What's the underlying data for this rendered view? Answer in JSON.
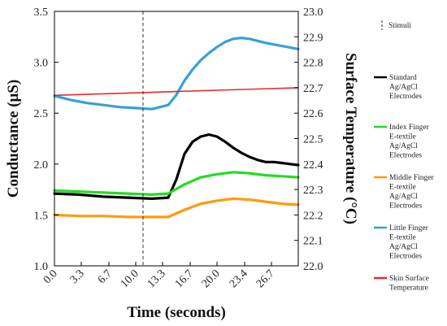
{
  "chart_data": {
    "type": "line",
    "xlabel": "Time (seconds)",
    "ylabel_left": "Conductance (μS)",
    "ylabel_right": "Surface Temperature (°C)",
    "xlim": [
      0,
      30
    ],
    "ylim_left": [
      1.0,
      3.5
    ],
    "ylim_right": [
      22.0,
      23.0
    ],
    "x_ticks": [
      "0.0",
      "3.3",
      "6.7",
      "10.0",
      "13.3",
      "16.7",
      "20.0",
      "23.4",
      "26.7"
    ],
    "x_tick_values": [
      0,
      3.3,
      6.7,
      10.0,
      13.3,
      16.7,
      20.0,
      23.4,
      26.7
    ],
    "y_ticks_left": [
      "1.0",
      "1.5",
      "2.0",
      "2.5",
      "3.0",
      "3.5"
    ],
    "y_ticks_right": [
      "22.0",
      "22.1",
      "22.2",
      "22.3",
      "22.4",
      "22.5",
      "22.6",
      "22.7",
      "22.8",
      "22.9",
      "23.0"
    ],
    "stimulus_time": 10.9,
    "grid": false,
    "legend_position": "right",
    "legend": {
      "stimuli": "Stimuli",
      "entries": [
        {
          "lines": [
            "Standard",
            "Ag/AgCl",
            "Electrodes"
          ],
          "color": "#000000"
        },
        {
          "lines": [
            "Index Finger",
            "E-textile",
            "Ag/AgCl",
            "Electrodes"
          ],
          "color": "#22dd22"
        },
        {
          "lines": [
            "Middle Finger",
            "E-textile",
            "Ag/AgCl",
            "Electrodes"
          ],
          "color": "#ff9b0d"
        },
        {
          "lines": [
            "Little Finger",
            "E-textile",
            "Ag/AgCl",
            "Electrodes"
          ],
          "color": "#3a9fd8"
        },
        {
          "lines": [
            "Skin Surface",
            "Temperature"
          ],
          "color": "#e8282a"
        }
      ]
    },
    "series": [
      {
        "axis": "left",
        "color": "#000000",
        "x": [
          0,
          3,
          6,
          9,
          12,
          14,
          15,
          16,
          17,
          18,
          19,
          20,
          21,
          22,
          23,
          24,
          25,
          26,
          27,
          28,
          29,
          30
        ],
        "y": [
          1.71,
          1.7,
          1.68,
          1.67,
          1.66,
          1.67,
          1.85,
          2.1,
          2.22,
          2.27,
          2.29,
          2.27,
          2.22,
          2.16,
          2.11,
          2.07,
          2.04,
          2.02,
          2.02,
          2.01,
          2.0,
          1.99
        ]
      },
      {
        "axis": "left",
        "color": "#22dd22",
        "x": [
          0,
          3,
          6,
          9,
          12,
          14,
          16,
          18,
          20,
          22,
          24,
          26,
          28,
          30
        ],
        "y": [
          1.74,
          1.73,
          1.72,
          1.71,
          1.7,
          1.71,
          1.8,
          1.87,
          1.9,
          1.92,
          1.91,
          1.89,
          1.88,
          1.87
        ]
      },
      {
        "axis": "left",
        "color": "#ff9b0d",
        "x": [
          0,
          3,
          6,
          9,
          12,
          14,
          16,
          18,
          20,
          22,
          24,
          26,
          28,
          30
        ],
        "y": [
          1.5,
          1.49,
          1.49,
          1.48,
          1.48,
          1.48,
          1.55,
          1.61,
          1.64,
          1.66,
          1.65,
          1.63,
          1.61,
          1.6
        ]
      },
      {
        "axis": "left",
        "color": "#3a9fd8",
        "x": [
          0,
          2,
          4,
          6,
          8,
          10,
          12,
          14,
          15,
          16,
          17,
          18,
          19,
          20,
          21,
          22,
          23,
          24,
          25,
          26,
          28,
          30
        ],
        "y": [
          2.67,
          2.63,
          2.6,
          2.58,
          2.56,
          2.55,
          2.54,
          2.58,
          2.68,
          2.82,
          2.93,
          3.02,
          3.09,
          3.15,
          3.2,
          3.23,
          3.24,
          3.23,
          3.21,
          3.19,
          3.16,
          3.13
        ]
      },
      {
        "axis": "right",
        "color": "#e8282a",
        "x": [
          0,
          5,
          10,
          15,
          20,
          25,
          30
        ],
        "y": [
          22.67,
          22.675,
          22.68,
          22.685,
          22.69,
          22.695,
          22.7
        ]
      }
    ]
  }
}
